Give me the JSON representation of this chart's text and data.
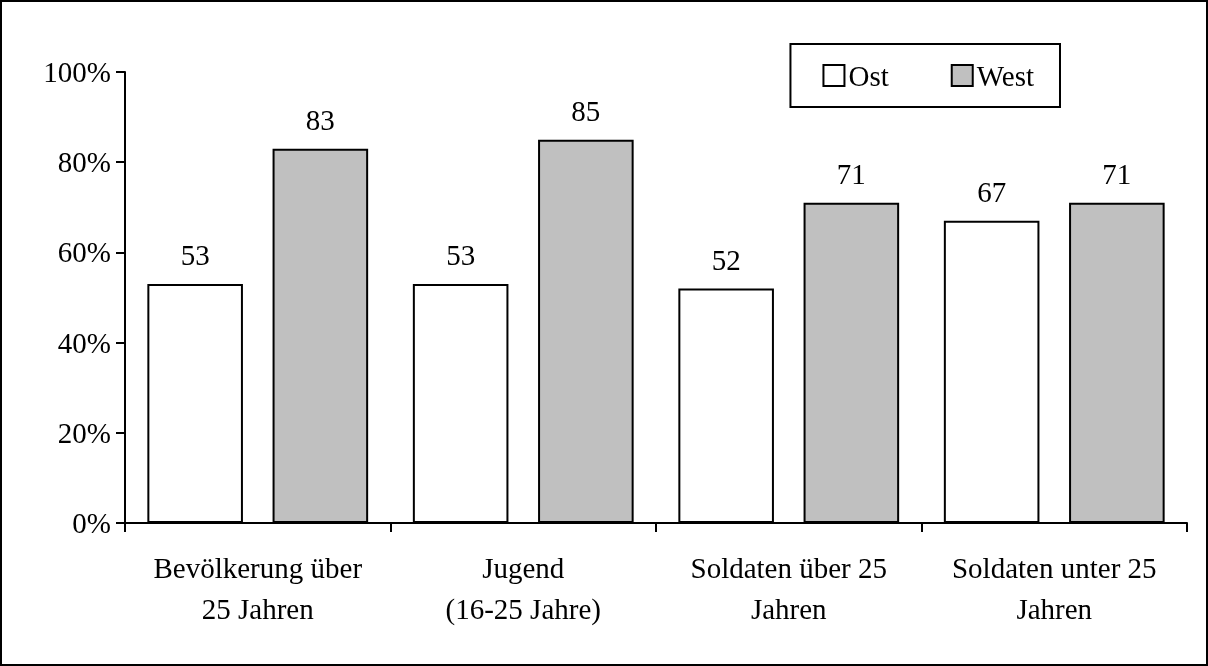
{
  "chart_data": {
    "type": "bar",
    "categories": [
      "Bevölkerung über\n25 Jahren",
      "Jugend\n(16-25 Jahre)",
      "Soldaten über 25\nJahren",
      "Soldaten unter 25\nJahren"
    ],
    "series": [
      {
        "name": "Ost",
        "color": "#ffffff",
        "values": [
          53,
          53,
          52,
          67
        ]
      },
      {
        "name": "West",
        "color": "#c0c0c0",
        "values": [
          83,
          85,
          71,
          71
        ]
      }
    ],
    "ylim": [
      0,
      100
    ],
    "yticks": [
      {
        "value": 0,
        "label": "0%"
      },
      {
        "value": 20,
        "label": "20%"
      },
      {
        "value": 40,
        "label": "40%"
      },
      {
        "value": 60,
        "label": "60%"
      },
      {
        "value": 80,
        "label": "80%"
      },
      {
        "value": 100,
        "label": "100%"
      }
    ],
    "data_labels": true,
    "legend": "top right",
    "grid": false
  }
}
